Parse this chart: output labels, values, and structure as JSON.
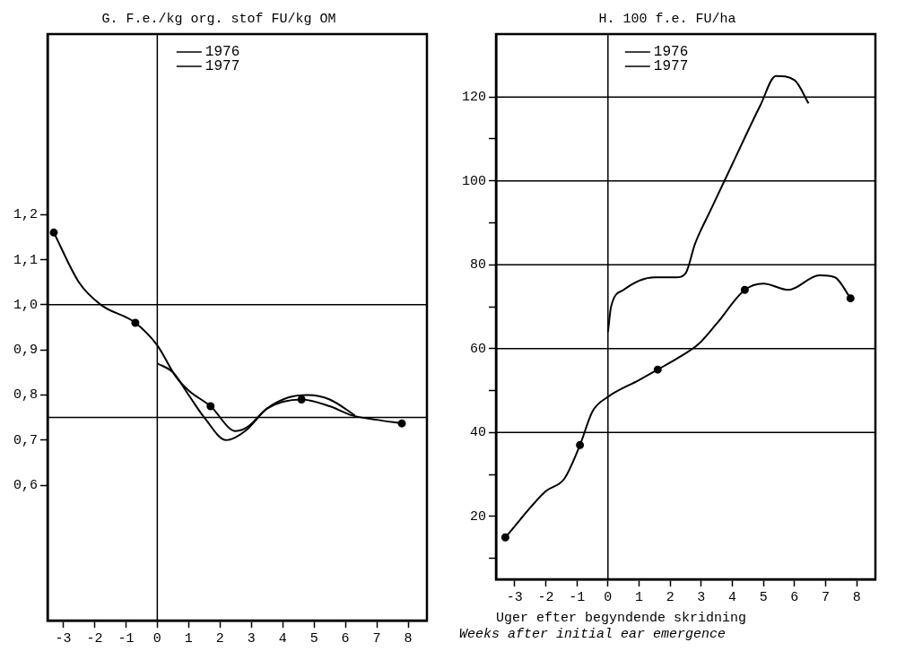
{
  "chart_data": [
    {
      "type": "line",
      "title": "G. F.e./kg org. stof FU/kg OM",
      "xlim": [
        -3.5,
        8.6
      ],
      "xticks": [
        -3,
        -2,
        -1,
        0,
        1,
        2,
        3,
        4,
        5,
        6,
        7,
        8
      ],
      "ylim": [
        0.3,
        1.6
      ],
      "yticks": [
        {
          "value": 0.6,
          "label": "0,6"
        },
        {
          "value": 0.7,
          "label": "0,7"
        },
        {
          "value": 0.8,
          "label": "0,8"
        },
        {
          "value": 0.9,
          "label": "0,9"
        },
        {
          "value": 1.0,
          "label": "1,0"
        },
        {
          "value": 1.1,
          "label": "1,1"
        },
        {
          "value": 1.2,
          "label": "1,2"
        }
      ],
      "grid": false,
      "legend": "top left",
      "ref_lines": [
        {
          "axis": "y",
          "value": 1.0
        },
        {
          "axis": "y",
          "value": 0.75
        },
        {
          "axis": "x",
          "value": 0
        }
      ],
      "series": [
        {
          "name": "1976",
          "color": "#000000",
          "marker": "none",
          "x": [
            0,
            0.5,
            1.0,
            1.5,
            2.2,
            2.8,
            3.5,
            4.2,
            4.8,
            5.5,
            6.3
          ],
          "values": [
            0.87,
            0.85,
            0.8,
            0.75,
            0.7,
            0.72,
            0.77,
            0.795,
            0.8,
            0.79,
            0.755
          ]
        },
        {
          "name": "1977",
          "color": "#000000",
          "marker": "none",
          "x": [
            -3.3,
            -2.5,
            -1.8,
            -0.7,
            0,
            0.6,
            1.0,
            1.7,
            2.5,
            2.9,
            3.5,
            4.6,
            5.5,
            6.2,
            7.0,
            7.8
          ],
          "values": [
            1.16,
            1.05,
            1.0,
            0.96,
            0.91,
            0.84,
            0.81,
            0.775,
            0.72,
            0.73,
            0.77,
            0.79,
            0.775,
            0.755,
            0.745,
            0.737
          ]
        },
        {
          "type": "scatter",
          "color": "#000000",
          "marker": "circle",
          "x": [
            -3.3,
            -0.7,
            1.7,
            4.6,
            7.8
          ],
          "values": [
            1.16,
            0.96,
            0.775,
            0.79,
            0.737
          ]
        }
      ]
    },
    {
      "type": "line",
      "title": "H. 100 f.e. FU/ha",
      "xlabel": "Uger efter begyndende skridning",
      "annotations": [
        "Weeks after initial ear emergence"
      ],
      "xlim": [
        -3.6,
        8.6
      ],
      "xticks": [
        -3,
        -2,
        -1,
        0,
        1,
        2,
        3,
        4,
        5,
        6,
        7,
        8
      ],
      "ylim": [
        5,
        135
      ],
      "yticks": [
        {
          "value": 10,
          "label": null
        },
        20,
        {
          "value": 30,
          "label": null
        },
        40,
        {
          "value": 50,
          "label": null
        },
        60,
        {
          "value": 70,
          "label": null
        },
        80,
        {
          "value": 90,
          "label": null
        },
        100,
        {
          "value": 110,
          "label": null
        },
        120
      ],
      "grid": false,
      "legend": "top left",
      "ref_lines": [
        {
          "axis": "y",
          "value": 40
        },
        {
          "axis": "y",
          "value": 60
        },
        {
          "axis": "y",
          "value": 80
        },
        {
          "axis": "y",
          "value": 100
        },
        {
          "axis": "y",
          "value": 120
        },
        {
          "axis": "x",
          "value": 0
        }
      ],
      "series": [
        {
          "name": "1976",
          "color": "#000000",
          "marker": "none",
          "x": [
            0,
            0.1,
            0.5,
            1.5,
            2.2,
            2.5,
            2.8,
            3.3,
            4.0,
            4.9,
            5.4,
            6.0,
            6.45
          ],
          "values": [
            64,
            70,
            74,
            77,
            77,
            78,
            85,
            93,
            104,
            118,
            125,
            124,
            118.5
          ]
        },
        {
          "name": "1977",
          "color": "#000000",
          "marker": "none",
          "x": [
            -3.3,
            -2,
            -1.4,
            -0.9,
            -0.5,
            0,
            1,
            1.6,
            2.3,
            2.9,
            3.5,
            4.4,
            5.0,
            5.8,
            6.8,
            7.3,
            7.8
          ],
          "values": [
            15,
            26,
            29,
            37,
            45,
            48.5,
            52.5,
            55,
            58,
            61,
            66,
            74,
            75.5,
            74,
            77.5,
            77,
            72
          ]
        },
        {
          "type": "scatter",
          "color": "#000000",
          "marker": "circle",
          "x": [
            -3.3,
            -0.9,
            1.6,
            4.4,
            7.8
          ],
          "values": [
            15,
            37,
            55,
            74,
            72
          ]
        }
      ]
    }
  ]
}
